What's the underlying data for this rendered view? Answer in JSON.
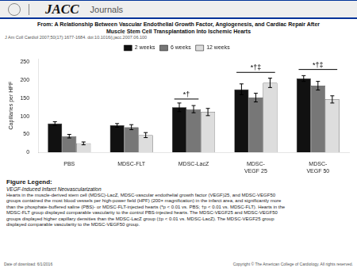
{
  "chart_data": {
    "type": "bar",
    "header": [
      "JACC",
      "Journals"
    ],
    "title": [
      "From: A Relationship Between Vascular Endothelial Growth Factor, Angiogenesis, and Cardiac Repair After",
      "Muscle Stem Cell Transplantation Into Ischemic Hearts"
    ],
    "subtitle": "J Am Coll Cardiol 2007;50(17):1677-1684. doi:10.1016/j.jacc.2007.06.100",
    "ylabel": "Capillaries per HPF",
    "categories": [
      "PBS",
      "MDSC-FLT",
      "MDSC-LacZ",
      "MDSC-\nVEGF 25",
      "MDSC-\nVEGF 50"
    ],
    "series": [
      {
        "name": "2 weeks",
        "color": "#111111",
        "values": [
          80,
          75,
          125,
          175,
          205
        ],
        "errors": [
          5,
          5,
          12,
          15,
          8
        ]
      },
      {
        "name": "6 weeks",
        "color": "#777777",
        "values": [
          45,
          70,
          120,
          152,
          185
        ],
        "errors": [
          5,
          7,
          10,
          12,
          12
        ]
      },
      {
        "name": "12 weeks",
        "color": "#dddddd",
        "values": [
          25,
          48,
          112,
          193,
          147
        ],
        "errors": [
          4,
          7,
          10,
          13,
          10
        ]
      }
    ],
    "ylim": [
      0,
      260
    ],
    "yticks": [
      0,
      50,
      100,
      150,
      200,
      250
    ],
    "grid": false,
    "legend": "top",
    "annotations": [
      {
        "text": "*†",
        "category": "MDSC-LacZ",
        "series": [
          "2 weeks",
          "6 weeks"
        ],
        "y": 148
      },
      {
        "text": "*†‡",
        "category": "MDSC-\nVEGF 25",
        "series": [
          "2 weeks",
          "12 weeks"
        ],
        "y": 222
      },
      {
        "text": "*†‡",
        "category": "MDSC-\nVEGF 50",
        "series": [
          "2 weeks",
          "12 weeks"
        ],
        "y": 230
      }
    ],
    "caption_title": "Figure Legend:",
    "caption_subtitle": "VEGF-Induced Infarct Neovascularization",
    "caption": [
      "Hearts in the muscle-derived stem cell (MDSC)-LacZ,  MDSC-vascular endothelial growth factor (VEGF)25, and MDSC-VEGF50",
      "groups contained the most blood vessels per high-power field (HPF) (200× magnification) in the infarct area, and significantly more",
      "than the phosphate-buffered saline (PBS)- or MDSC-FLT-injected hearts (*p < 0.01 vs. PBS; †p < 0.01 vs. MDSC-FLT). Hearts in the",
      "MDSC-FLT group displayed comparable vascularity to the control PBS-injected hearts. The MDSC-VEGF25 and MDSC-VEGF50",
      "groups displayed higher capillary densities than the MDSC-LacZ group (‡p < 0.01 vs. MDSC-LacZ). The MDSC-VEGF25 group",
      "displayed comparable vascularity to the MDSC-VEGF50 group."
    ],
    "footer": [
      "Date of download: 6/1/2016",
      "Copyright © The American College of Cardiology.  All rights reserved."
    ]
  }
}
